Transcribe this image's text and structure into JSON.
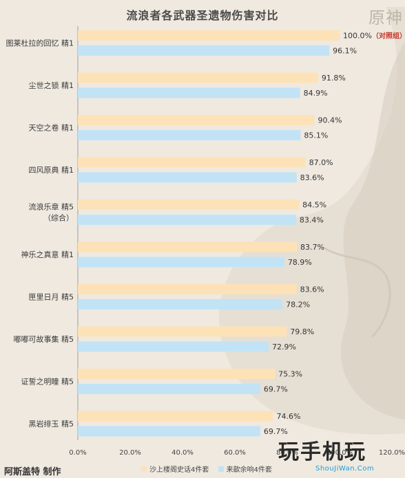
{
  "title": "流浪者各武器圣遗物伤害对比",
  "logo_text": "原神",
  "author": "阿斯盖特 制作",
  "watermark": {
    "brand": "玩手机玩",
    "url": "ShouJiWan.Com"
  },
  "colors": {
    "series1": "#fde2b8",
    "series2": "#c2e3f5",
    "control_text": "#c0392b"
  },
  "chart_data": {
    "type": "bar",
    "orientation": "horizontal",
    "title": "流浪者各武器圣遗物伤害对比",
    "categories": [
      [
        "图莱杜拉的回忆 精1"
      ],
      [
        "尘世之锁 精1"
      ],
      [
        "天空之卷 精1"
      ],
      [
        "四风原典 精1"
      ],
      [
        "流浪乐章 精5",
        "（综合）"
      ],
      [
        "神乐之真意 精1"
      ],
      [
        "匣里日月 精5"
      ],
      [
        "嘟嘟可故事集 精5"
      ],
      [
        "证誓之明瞳 精5"
      ],
      [
        "黑岩绯玉 精5"
      ]
    ],
    "series": [
      {
        "name": "沙上楼阁史话4件套",
        "values": [
          100.0,
          91.8,
          90.4,
          87.0,
          84.5,
          83.7,
          83.6,
          79.8,
          75.3,
          74.6
        ]
      },
      {
        "name": "来歆余响4件套",
        "values": [
          96.1,
          84.9,
          85.1,
          83.6,
          83.4,
          78.9,
          78.2,
          72.9,
          69.7,
          69.7
        ]
      }
    ],
    "value_labels": [
      [
        "100.0%",
        "91.8%",
        "90.4%",
        "87.0%",
        "84.5%",
        "83.7%",
        "83.6%",
        "79.8%",
        "75.3%",
        "74.6%"
      ],
      [
        "96.1%",
        "84.9%",
        "85.1%",
        "83.6%",
        "83.4%",
        "78.9%",
        "78.2%",
        "72.9%",
        "69.7%",
        "69.7%"
      ]
    ],
    "annotation": "（对照组）",
    "xlim": [
      0,
      120
    ],
    "xticks": [
      "0.0%",
      "20.0%",
      "40.0%",
      "60.0%",
      "80.0%",
      "100.0%",
      "120.0%"
    ],
    "grid": false,
    "legend_position": "bottom"
  }
}
